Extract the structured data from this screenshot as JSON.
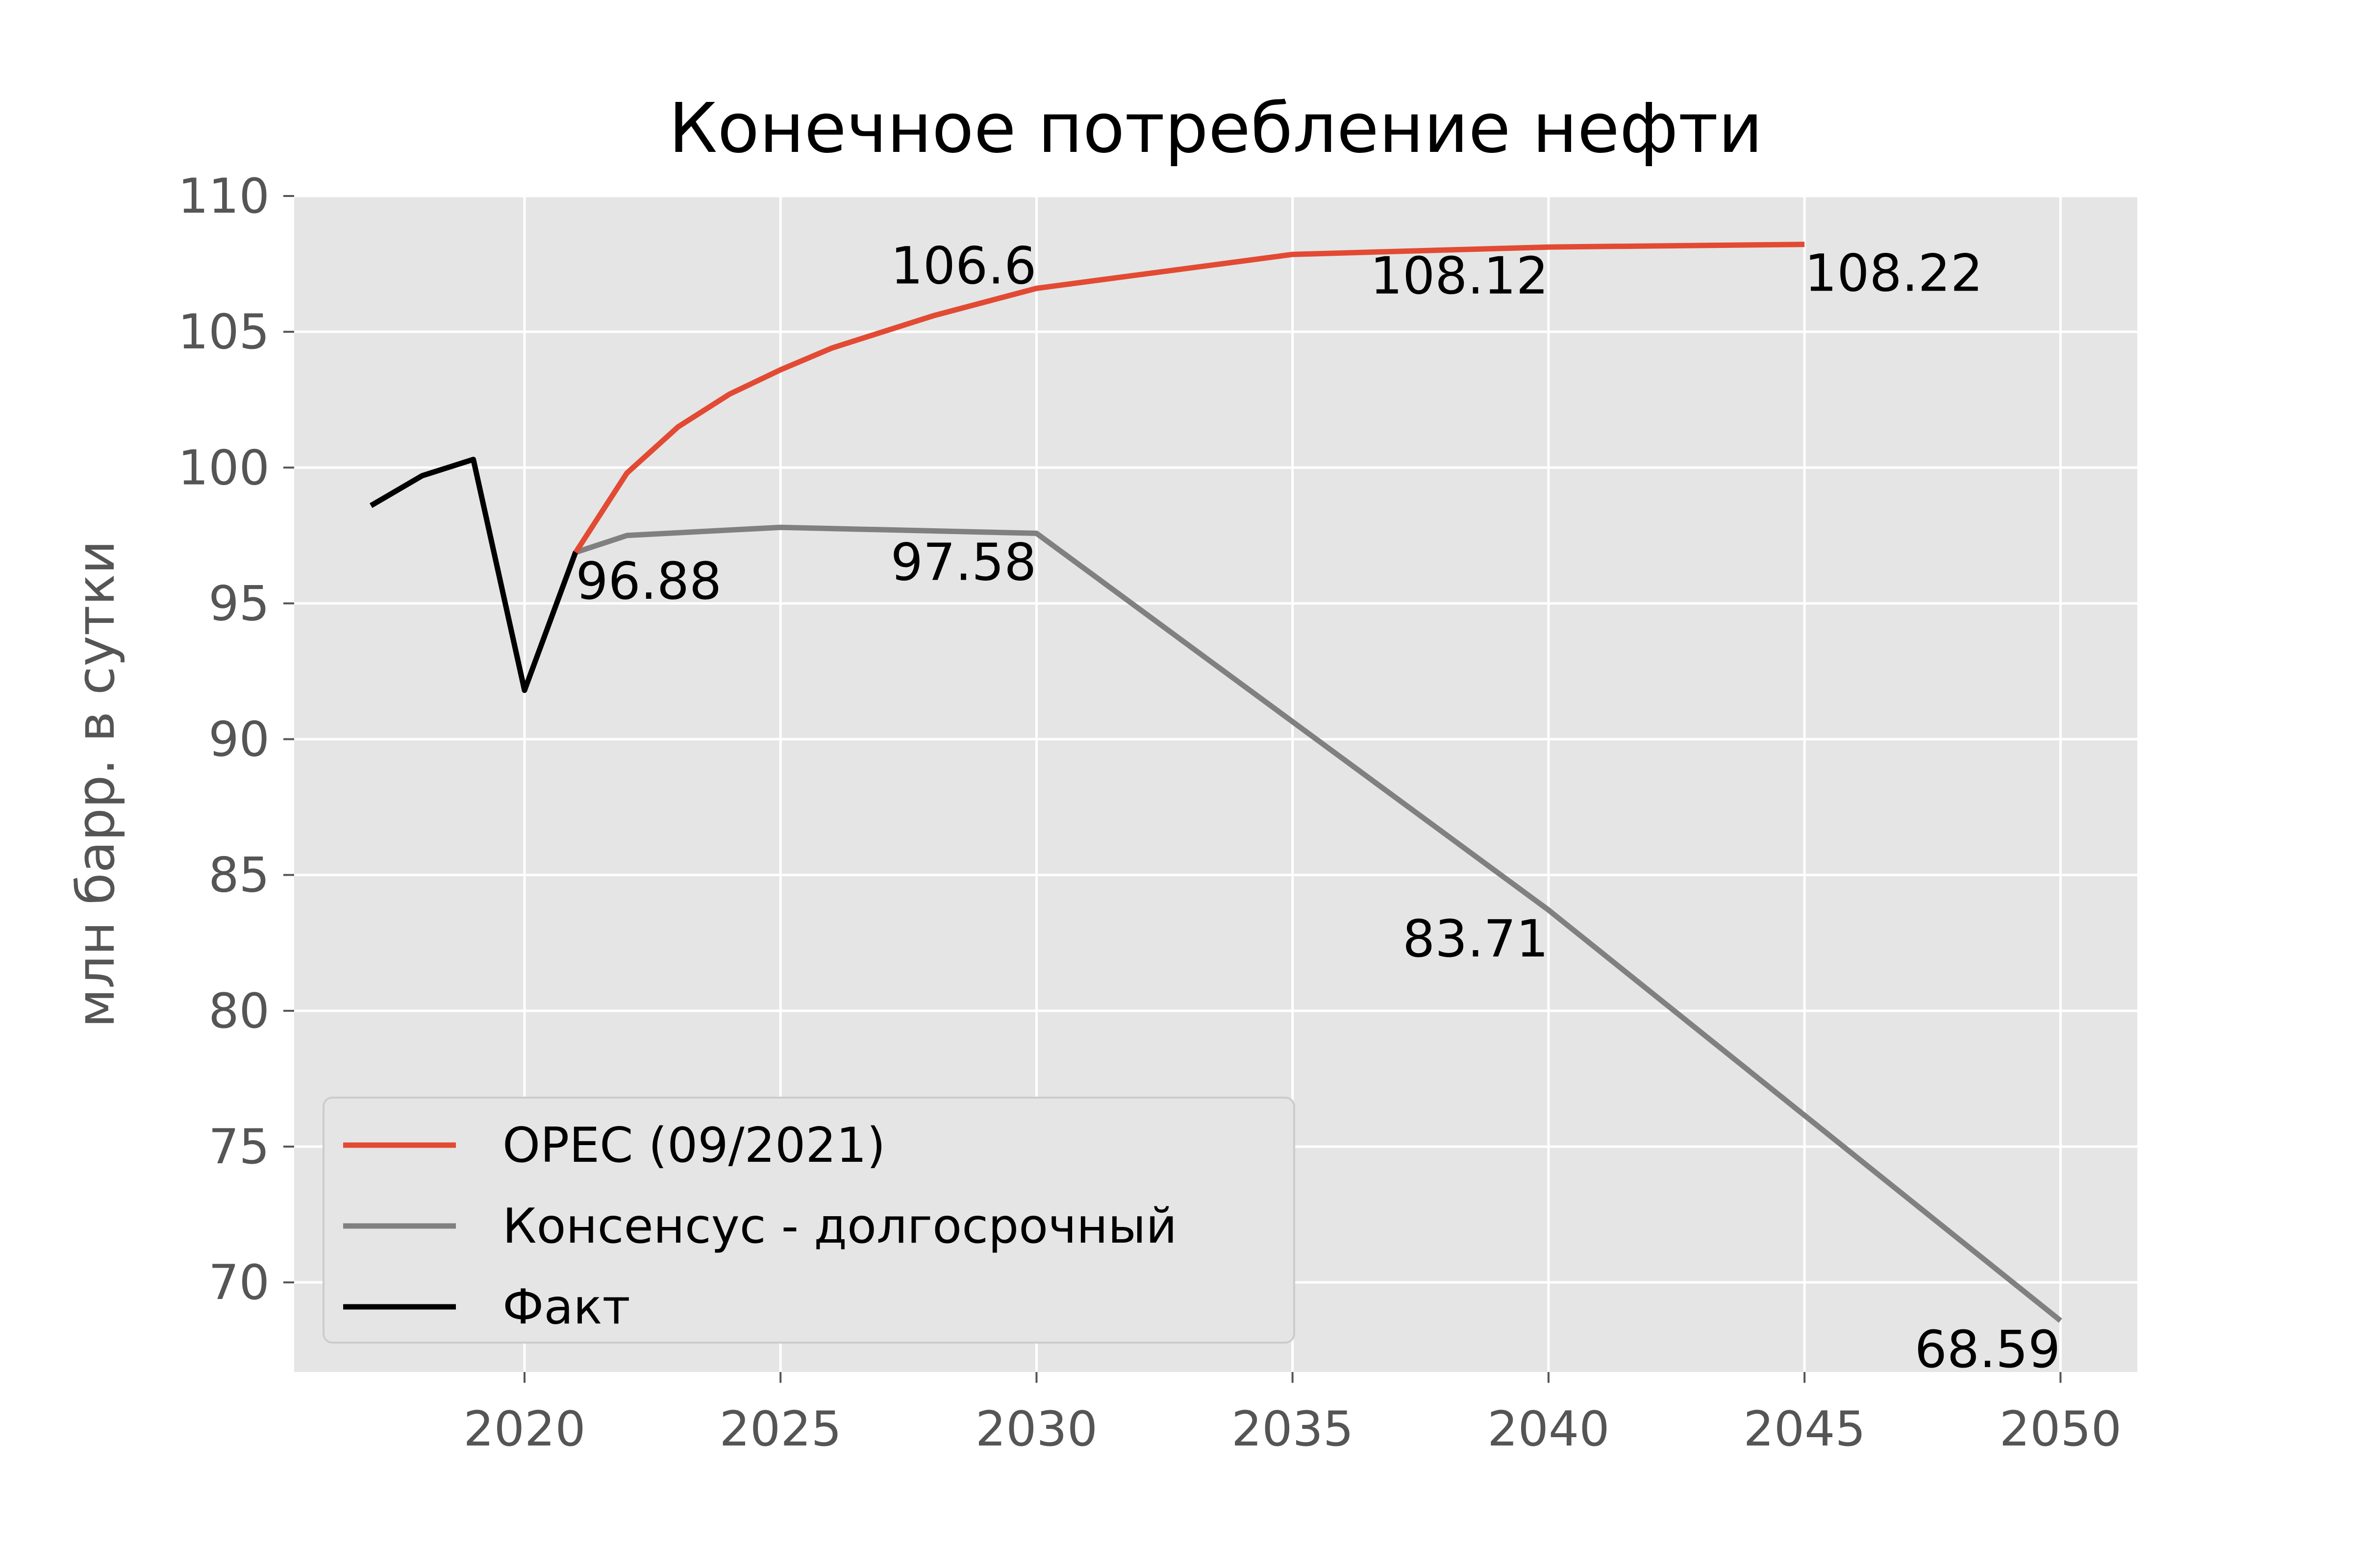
{
  "chart_data": {
    "type": "line",
    "title": "Конечное потребление нефти",
    "xlabel": "",
    "ylabel": "млн барр. в сутки",
    "xlim": [
      2015.5,
      2051.5
    ],
    "ylim": [
      66.7,
      110
    ],
    "xticks": [
      2020,
      2025,
      2030,
      2035,
      2040,
      2045,
      2050
    ],
    "yticks": [
      70,
      75,
      80,
      85,
      90,
      95,
      100,
      105,
      110
    ],
    "grid": true,
    "legend_position": "lower-left",
    "series": [
      {
        "name": "OPEC (09/2021)",
        "color": "#E24A33",
        "x": [
          2021,
          2022,
          2023,
          2024,
          2025,
          2026,
          2027,
          2028,
          2029,
          2030,
          2035,
          2040,
          2045
        ],
        "y": [
          96.88,
          99.8,
          101.5,
          102.7,
          103.6,
          104.4,
          105.0,
          105.6,
          106.1,
          106.6,
          107.85,
          108.12,
          108.22
        ]
      },
      {
        "name": "Консенсус - долгосрочный",
        "color": "#808080",
        "x": [
          2021,
          2022,
          2025,
          2030,
          2040,
          2050
        ],
        "y": [
          96.88,
          97.5,
          97.8,
          97.58,
          83.71,
          68.59
        ]
      },
      {
        "name": "Факт",
        "color": "#000000",
        "x": [
          2017,
          2018,
          2019,
          2020,
          2021
        ],
        "y": [
          98.6,
          99.7,
          100.3,
          91.8,
          96.9
        ]
      }
    ],
    "annotations": [
      {
        "text": "96.88",
        "x": 2021,
        "y": 96.88
      },
      {
        "text": "106.6",
        "x": 2030,
        "y": 106.6
      },
      {
        "text": "97.58",
        "x": 2030,
        "y": 97.58
      },
      {
        "text": "108.12",
        "x": 2040,
        "y": 108.12
      },
      {
        "text": "108.22",
        "x": 2045,
        "y": 108.22
      },
      {
        "text": "83.71",
        "x": 2040,
        "y": 83.71
      },
      {
        "text": "68.59",
        "x": 2050,
        "y": 68.59
      }
    ]
  }
}
